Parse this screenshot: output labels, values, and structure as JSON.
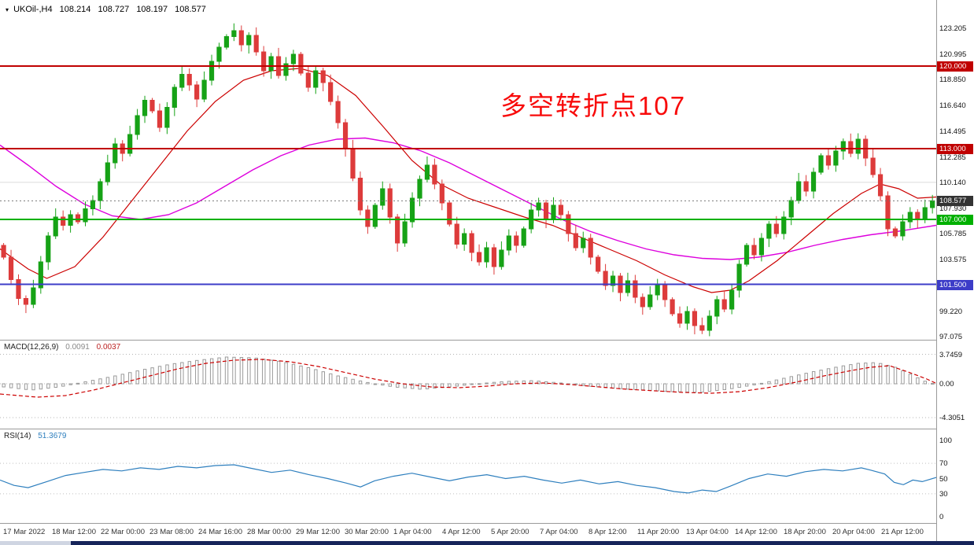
{
  "legend": {
    "marker": "▾",
    "symbol_period": "UKOil-,H4",
    "open": "108.214",
    "high": "108.727",
    "low": "108.197",
    "close": "108.577"
  },
  "annotation": {
    "text": "多空转折点107",
    "color": "#f80b0b"
  },
  "panels": {
    "macd": {
      "name": "MACD(12,26,9)",
      "value_main": "0.0091",
      "value_signal": "0.0037"
    },
    "rsi": {
      "name": "RSI(14)",
      "value": "51.3679"
    }
  },
  "colors": {
    "up": "#16a216",
    "down": "#dd3b3b",
    "ma_fast": "#cc0000",
    "ma_slow": "#dd00dd",
    "macd_hist": "#9a9a9a",
    "macd_signal": "#cc0000",
    "rsi": "#2e7fbe",
    "current_badge_bg": "#333333"
  },
  "chart_data": {
    "type": "candlestick",
    "symbol": "UKOil-",
    "timeframe": "H4",
    "ohlc_display": {
      "open": 108.214,
      "high": 108.727,
      "low": 108.197,
      "close": 108.577
    },
    "price_axis": {
      "ylim": [
        96.8,
        125.6
      ],
      "labels": [
        "123.205",
        "120.995",
        "118.850",
        "116.640",
        "114.495",
        "112.285",
        "110.140",
        "107.930",
        "105.785",
        "103.575",
        "99.220",
        "97.075"
      ]
    },
    "first_open": 104.8,
    "closes": [
      103.8,
      101.9,
      100.3,
      99.8,
      101.2,
      103.4,
      105.6,
      107.2,
      106.5,
      107.4,
      106.8,
      107.9,
      108.6,
      110.2,
      111.8,
      113.4,
      112.6,
      114.2,
      115.8,
      117.1,
      116.2,
      114.8,
      116.5,
      118.2,
      119.3,
      118.4,
      117.2,
      118.8,
      120.4,
      121.6,
      122.5,
      123.0,
      121.8,
      122.6,
      121.2,
      119.6,
      120.8,
      119.2,
      120.2,
      121.0,
      119.4,
      118.2,
      119.6,
      118.6,
      117.0,
      115.2,
      113.0,
      110.5,
      107.8,
      106.4,
      108.2,
      109.6,
      107.2,
      105.0,
      106.8,
      108.8,
      110.4,
      111.6,
      110.0,
      108.4,
      106.6,
      104.9,
      105.8,
      104.2,
      103.4,
      104.6,
      103.0,
      104.4,
      105.6,
      104.8,
      106.2,
      107.8,
      108.4,
      107.0,
      108.2,
      107.4,
      105.8,
      104.6,
      105.4,
      103.8,
      102.6,
      101.4,
      102.2,
      100.8,
      101.8,
      100.4,
      99.6,
      100.6,
      101.4,
      100.2,
      99.0,
      98.2,
      99.2,
      98.0,
      97.6,
      98.8,
      100.2,
      99.4,
      101.0,
      103.2,
      104.8,
      104.0,
      105.4,
      106.6,
      105.8,
      107.2,
      108.6,
      110.2,
      109.4,
      111.0,
      112.4,
      111.6,
      112.8,
      113.6,
      112.6,
      113.8,
      112.2,
      110.8,
      109.0,
      106.2,
      105.6,
      106.8,
      107.6,
      107.0,
      108.0,
      108.577
    ],
    "hlines": [
      {
        "price": 120.0,
        "label": "120.000",
        "color": "#c00000"
      },
      {
        "price": 113.0,
        "label": "113.000",
        "color": "#c00000"
      },
      {
        "price": 107.0,
        "label": "107.000",
        "color": "#00b000"
      },
      {
        "price": 101.5,
        "label": "101.500",
        "color": "#3c3cc8"
      }
    ],
    "current_price": {
      "value": 108.577,
      "label": "108.577"
    },
    "gridline_price": 110.14,
    "ma_fast": {
      "points": [
        [
          0,
          104.5
        ],
        [
          0.03,
          102.8
        ],
        [
          0.05,
          102.0
        ],
        [
          0.08,
          103.0
        ],
        [
          0.11,
          105.5
        ],
        [
          0.14,
          108.5
        ],
        [
          0.17,
          111.5
        ],
        [
          0.2,
          114.5
        ],
        [
          0.23,
          117.0
        ],
        [
          0.26,
          118.8
        ],
        [
          0.29,
          119.6
        ],
        [
          0.32,
          119.8
        ],
        [
          0.35,
          119.2
        ],
        [
          0.38,
          117.5
        ],
        [
          0.41,
          114.8
        ],
        [
          0.44,
          112.0
        ],
        [
          0.47,
          110.0
        ],
        [
          0.5,
          108.8
        ],
        [
          0.53,
          108.0
        ],
        [
          0.56,
          107.2
        ],
        [
          0.59,
          106.5
        ],
        [
          0.62,
          105.5
        ],
        [
          0.65,
          104.5
        ],
        [
          0.68,
          103.5
        ],
        [
          0.71,
          102.3
        ],
        [
          0.74,
          101.3
        ],
        [
          0.76,
          100.8
        ],
        [
          0.78,
          101.0
        ],
        [
          0.8,
          101.8
        ],
        [
          0.83,
          103.5
        ],
        [
          0.86,
          105.5
        ],
        [
          0.89,
          107.5
        ],
        [
          0.92,
          109.2
        ],
        [
          0.94,
          110.0
        ],
        [
          0.96,
          109.6
        ],
        [
          0.98,
          108.8
        ],
        [
          1,
          108.9
        ]
      ]
    },
    "ma_slow": {
      "points": [
        [
          0,
          113.3
        ],
        [
          0.03,
          111.6
        ],
        [
          0.06,
          109.8
        ],
        [
          0.09,
          108.3
        ],
        [
          0.12,
          107.3
        ],
        [
          0.15,
          107.0
        ],
        [
          0.18,
          107.4
        ],
        [
          0.21,
          108.4
        ],
        [
          0.24,
          109.8
        ],
        [
          0.27,
          111.2
        ],
        [
          0.3,
          112.4
        ],
        [
          0.33,
          113.3
        ],
        [
          0.36,
          113.8
        ],
        [
          0.39,
          113.9
        ],
        [
          0.42,
          113.5
        ],
        [
          0.45,
          112.8
        ],
        [
          0.48,
          111.8
        ],
        [
          0.51,
          110.6
        ],
        [
          0.54,
          109.4
        ],
        [
          0.57,
          108.2
        ],
        [
          0.6,
          107.0
        ],
        [
          0.63,
          106.0
        ],
        [
          0.66,
          105.2
        ],
        [
          0.69,
          104.5
        ],
        [
          0.72,
          104.0
        ],
        [
          0.75,
          103.7
        ],
        [
          0.78,
          103.6
        ],
        [
          0.81,
          103.8
        ],
        [
          0.84,
          104.2
        ],
        [
          0.87,
          104.8
        ],
        [
          0.9,
          105.3
        ],
        [
          0.93,
          105.7
        ],
        [
          0.96,
          106.0
        ],
        [
          1,
          106.5
        ]
      ]
    },
    "macd": {
      "current_macd": 0.0091,
      "current_signal": 0.0037,
      "axis_labels": [
        "3.7459",
        "0.00",
        "-4.3051"
      ],
      "axis_levels": [
        3.7459,
        0,
        -4.3051
      ],
      "histogram": [
        [
          0,
          -0.4
        ],
        [
          0.03,
          -0.8
        ],
        [
          0.06,
          -0.4
        ],
        [
          0.09,
          0.3
        ],
        [
          0.12,
          1.0
        ],
        [
          0.15,
          1.8
        ],
        [
          0.18,
          2.5
        ],
        [
          0.21,
          3.0
        ],
        [
          0.24,
          3.4
        ],
        [
          0.27,
          3.3
        ],
        [
          0.3,
          2.8
        ],
        [
          0.33,
          2.0
        ],
        [
          0.36,
          1.0
        ],
        [
          0.39,
          0.2
        ],
        [
          0.42,
          -0.4
        ],
        [
          0.45,
          -0.7
        ],
        [
          0.48,
          -0.4
        ],
        [
          0.51,
          0.0
        ],
        [
          0.54,
          0.3
        ],
        [
          0.57,
          0.4
        ],
        [
          0.6,
          0.1
        ],
        [
          0.63,
          -0.3
        ],
        [
          0.66,
          -0.6
        ],
        [
          0.69,
          -0.8
        ],
        [
          0.72,
          -1.0
        ],
        [
          0.75,
          -1.1
        ],
        [
          0.78,
          -0.7
        ],
        [
          0.81,
          -0.1
        ],
        [
          0.84,
          0.7
        ],
        [
          0.87,
          1.5
        ],
        [
          0.9,
          2.2
        ],
        [
          0.92,
          2.6
        ],
        [
          0.94,
          2.7
        ],
        [
          0.96,
          2.1
        ],
        [
          0.98,
          1.0
        ],
        [
          0.99,
          0.4
        ],
        [
          1,
          0.05
        ]
      ],
      "signal": [
        [
          0,
          -1.3
        ],
        [
          0.04,
          -1.7
        ],
        [
          0.07,
          -1.5
        ],
        [
          0.1,
          -0.8
        ],
        [
          0.13,
          0.1
        ],
        [
          0.16,
          1.0
        ],
        [
          0.19,
          1.9
        ],
        [
          0.22,
          2.6
        ],
        [
          0.25,
          3.0
        ],
        [
          0.28,
          3.1
        ],
        [
          0.31,
          2.8
        ],
        [
          0.34,
          2.2
        ],
        [
          0.37,
          1.4
        ],
        [
          0.4,
          0.6
        ],
        [
          0.43,
          0.0
        ],
        [
          0.46,
          -0.4
        ],
        [
          0.49,
          -0.5
        ],
        [
          0.52,
          -0.3
        ],
        [
          0.55,
          0.0
        ],
        [
          0.58,
          0.1
        ],
        [
          0.61,
          -0.1
        ],
        [
          0.64,
          -0.4
        ],
        [
          0.67,
          -0.7
        ],
        [
          0.7,
          -0.9
        ],
        [
          0.73,
          -1.1
        ],
        [
          0.76,
          -1.2
        ],
        [
          0.79,
          -1.0
        ],
        [
          0.82,
          -0.5
        ],
        [
          0.85,
          0.2
        ],
        [
          0.88,
          1.0
        ],
        [
          0.91,
          1.7
        ],
        [
          0.93,
          2.1
        ],
        [
          0.95,
          2.3
        ],
        [
          0.97,
          1.5
        ],
        [
          0.99,
          0.6
        ],
        [
          1,
          0.05
        ]
      ]
    },
    "rsi": {
      "current": 51.3679,
      "axis_labels": [
        "100",
        "70",
        "50",
        "30",
        "0"
      ],
      "axis_values": [
        100,
        70,
        50,
        30,
        0
      ],
      "levels": [
        70,
        30
      ],
      "points": [
        [
          0,
          48
        ],
        [
          0.015,
          41
        ],
        [
          0.03,
          38
        ],
        [
          0.05,
          46
        ],
        [
          0.07,
          54
        ],
        [
          0.09,
          58
        ],
        [
          0.11,
          62
        ],
        [
          0.13,
          60
        ],
        [
          0.15,
          64
        ],
        [
          0.17,
          62
        ],
        [
          0.19,
          66
        ],
        [
          0.21,
          64
        ],
        [
          0.23,
          67
        ],
        [
          0.25,
          68
        ],
        [
          0.27,
          63
        ],
        [
          0.29,
          58
        ],
        [
          0.31,
          61
        ],
        [
          0.33,
          55
        ],
        [
          0.35,
          50
        ],
        [
          0.37,
          44
        ],
        [
          0.385,
          39
        ],
        [
          0.4,
          47
        ],
        [
          0.42,
          53
        ],
        [
          0.44,
          57
        ],
        [
          0.46,
          52
        ],
        [
          0.48,
          47
        ],
        [
          0.5,
          52
        ],
        [
          0.52,
          55
        ],
        [
          0.54,
          50
        ],
        [
          0.56,
          53
        ],
        [
          0.58,
          48
        ],
        [
          0.6,
          44
        ],
        [
          0.62,
          48
        ],
        [
          0.64,
          43
        ],
        [
          0.66,
          46
        ],
        [
          0.68,
          41
        ],
        [
          0.7,
          38
        ],
        [
          0.72,
          33
        ],
        [
          0.735,
          31
        ],
        [
          0.75,
          35
        ],
        [
          0.765,
          33
        ],
        [
          0.78,
          40
        ],
        [
          0.8,
          50
        ],
        [
          0.82,
          56
        ],
        [
          0.84,
          53
        ],
        [
          0.86,
          59
        ],
        [
          0.88,
          62
        ],
        [
          0.9,
          60
        ],
        [
          0.92,
          64
        ],
        [
          0.93,
          61
        ],
        [
          0.945,
          56
        ],
        [
          0.955,
          45
        ],
        [
          0.965,
          42
        ],
        [
          0.975,
          48
        ],
        [
          0.985,
          46
        ],
        [
          1,
          51.4
        ]
      ]
    },
    "x_labels": [
      "17 Mar 2022",
      "18 Mar 12:00",
      "22 Mar 00:00",
      "23 Mar 08:00",
      "24 Mar 16:00",
      "28 Mar 00:00",
      "29 Mar 12:00",
      "30 Mar 20:00",
      "1 Apr 04:00",
      "4 Apr 12:00",
      "5 Apr 20:00",
      "7 Apr 04:00",
      "8 Apr 12:00",
      "11 Apr 20:00",
      "13 Apr 04:00",
      "14 Apr 12:00",
      "18 Apr 20:00",
      "20 Apr 04:00",
      "21 Apr 12:00"
    ]
  }
}
